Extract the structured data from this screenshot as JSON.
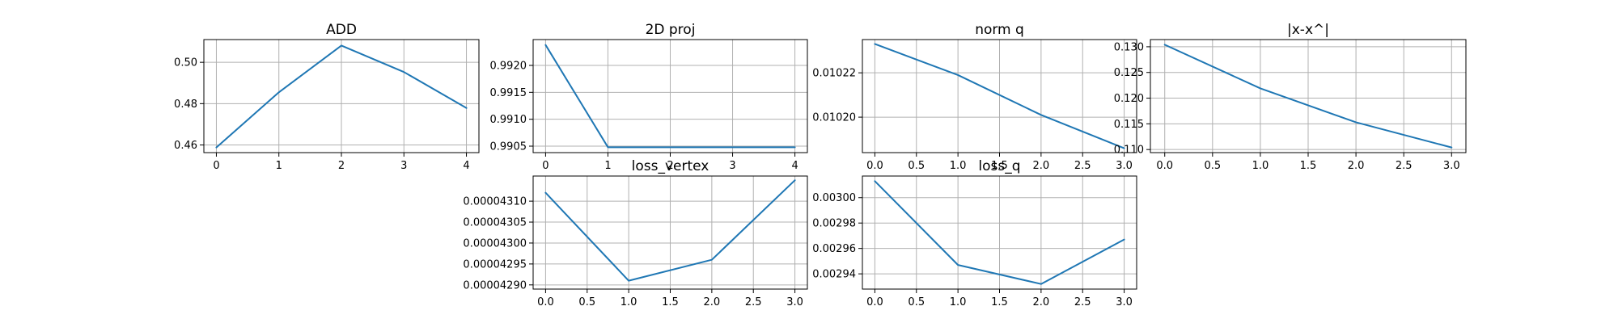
{
  "figure": {
    "background": "#ffffff",
    "line_color": "#1f77b4"
  },
  "chart_data": [
    {
      "type": "line",
      "title": "ADD",
      "x": [
        0,
        1,
        2,
        3,
        4
      ],
      "series": [
        {
          "values": [
            0.4588,
            0.4855,
            0.5081,
            0.4953,
            0.4779
          ]
        }
      ],
      "xlim": [
        -0.2,
        4.2
      ],
      "ylim": [
        0.4563,
        0.511
      ],
      "xticks": [
        0,
        1,
        2,
        3,
        4
      ],
      "xtick_labels": [
        "0",
        "1",
        "2",
        "3",
        "4"
      ],
      "yticks": [
        0.46,
        0.48,
        0.5
      ],
      "ytick_labels": [
        "0.46",
        "0.48",
        "0.50"
      ],
      "grid": true
    },
    {
      "type": "line",
      "title": "2D proj",
      "x": [
        0,
        1,
        2,
        3,
        4
      ],
      "series": [
        {
          "values": [
            0.99238,
            0.99048,
            0.99048,
            0.99048,
            0.99048
          ]
        }
      ],
      "xlim": [
        -0.2,
        4.2
      ],
      "ylim": [
        0.99038,
        0.99248
      ],
      "xticks": [
        0,
        1,
        2,
        3,
        4
      ],
      "xtick_labels": [
        "0",
        "1",
        "2",
        "3",
        "4"
      ],
      "yticks": [
        0.9905,
        0.991,
        0.9915,
        0.992
      ],
      "ytick_labels": [
        "0.9905",
        "0.9910",
        "0.9915",
        "0.9920"
      ],
      "grid": true
    },
    {
      "type": "line",
      "title": "norm q",
      "x": [
        0,
        1,
        2,
        3
      ],
      "series": [
        {
          "values": [
            0.010233,
            0.010219,
            0.010201,
            0.010186
          ]
        }
      ],
      "xlim": [
        -0.15,
        3.15
      ],
      "ylim": [
        0.010184,
        0.010235
      ],
      "xticks": [
        0,
        0.5,
        1,
        1.5,
        2,
        2.5,
        3
      ],
      "xtick_labels": [
        "0.0",
        "0.5",
        "1.0",
        "1.5",
        "2.0",
        "2.5",
        "3.0"
      ],
      "yticks": [
        0.0102,
        0.01022
      ],
      "ytick_labels": [
        "0.01020",
        "0.01022"
      ],
      "grid": true
    },
    {
      "type": "line",
      "title": "|x-x^|",
      "x": [
        0,
        1,
        2,
        3
      ],
      "series": [
        {
          "values": [
            0.1304,
            0.1219,
            0.1153,
            0.1104
          ]
        }
      ],
      "xlim": [
        -0.15,
        3.15
      ],
      "ylim": [
        0.1094,
        0.1314
      ],
      "xticks": [
        0,
        0.5,
        1,
        1.5,
        2,
        2.5,
        3
      ],
      "xtick_labels": [
        "0.0",
        "0.5",
        "1.0",
        "1.5",
        "2.0",
        "2.5",
        "3.0"
      ],
      "yticks": [
        0.11,
        0.115,
        0.12,
        0.125,
        0.13
      ],
      "ytick_labels": [
        "0.110",
        "0.115",
        "0.120",
        "0.125",
        "0.130"
      ],
      "grid": true
    },
    {
      "type": "line",
      "title": "loss_vertex",
      "x": [
        0,
        1,
        2,
        3
      ],
      "series": [
        {
          "values": [
            4.312e-05,
            4.291e-05,
            4.296e-05,
            4.315e-05
          ]
        }
      ],
      "xlim": [
        -0.15,
        3.15
      ],
      "ylim": [
        4.289e-05,
        4.316e-05
      ],
      "xticks": [
        0,
        0.5,
        1,
        1.5,
        2,
        2.5,
        3
      ],
      "xtick_labels": [
        "0.0",
        "0.5",
        "1.0",
        "1.5",
        "2.0",
        "2.5",
        "3.0"
      ],
      "yticks": [
        4.29e-05,
        4.295e-05,
        4.3e-05,
        4.305e-05,
        4.31e-05
      ],
      "ytick_labels": [
        "0.00004290",
        "0.00004295",
        "0.00004300",
        "0.00004305",
        "0.00004310"
      ],
      "grid": true
    },
    {
      "type": "line",
      "title": "loss_q",
      "x": [
        0,
        1,
        2,
        3
      ],
      "series": [
        {
          "values": [
            0.003013,
            0.002947,
            0.002932,
            0.002967
          ]
        }
      ],
      "xlim": [
        -0.15,
        3.15
      ],
      "ylim": [
        0.002928,
        0.003017
      ],
      "xticks": [
        0,
        0.5,
        1,
        1.5,
        2,
        2.5,
        3
      ],
      "xtick_labels": [
        "0.0",
        "0.5",
        "1.0",
        "1.5",
        "2.0",
        "2.5",
        "3.0"
      ],
      "yticks": [
        0.00294,
        0.00296,
        0.00298,
        0.003
      ],
      "ytick_labels": [
        "0.00294",
        "0.00296",
        "0.00298",
        "0.00300"
      ],
      "grid": true
    }
  ]
}
